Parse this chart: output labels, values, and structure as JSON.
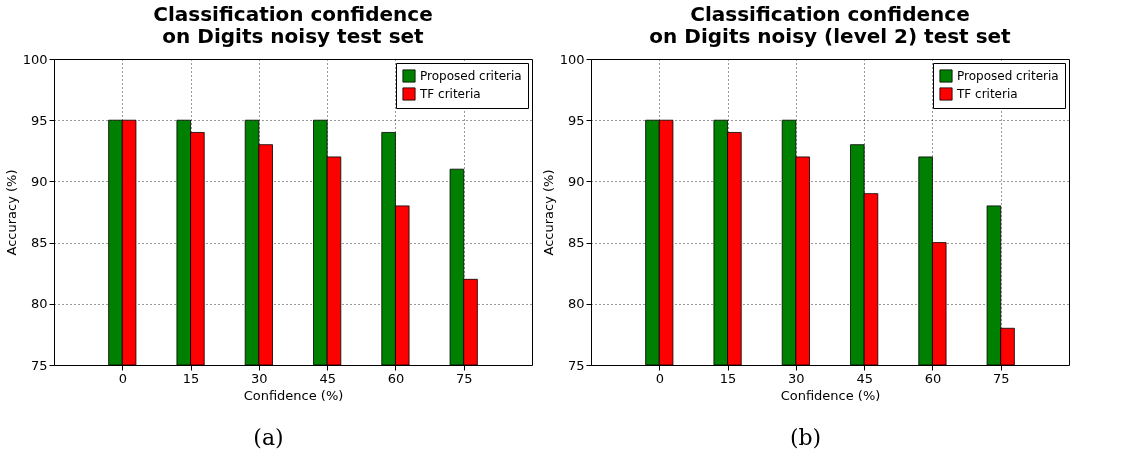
{
  "chart_data": [
    {
      "type": "bar",
      "title": "Classification confidence\non Digits noisy test set",
      "xlabel": "Confidence (%)",
      "ylabel": "Accuracy (%)",
      "x": [
        0,
        15,
        30,
        45,
        60,
        75
      ],
      "xlim": [
        -15,
        90
      ],
      "xticks": [
        0,
        15,
        30,
        45,
        60,
        75
      ],
      "ylim": [
        75,
        100
      ],
      "yticks": [
        75,
        80,
        85,
        90,
        95,
        100
      ],
      "grid": true,
      "legend": "top right",
      "annotations": [
        "(a)"
      ],
      "series": [
        {
          "name": "Proposed criteria",
          "color": "#008000",
          "values": [
            95,
            95,
            95,
            95,
            94,
            91
          ]
        },
        {
          "name": "TF criteria",
          "color": "#ff0000",
          "values": [
            95,
            94,
            93,
            92,
            88,
            82
          ]
        }
      ]
    },
    {
      "type": "bar",
      "title": "Classification confidence\non Digits noisy (level 2) test set",
      "xlabel": "Confidence (%)",
      "ylabel": "Accuracy (%)",
      "x": [
        0,
        15,
        30,
        45,
        60,
        75
      ],
      "xlim": [
        -15,
        90
      ],
      "xticks": [
        0,
        15,
        30,
        45,
        60,
        75
      ],
      "ylim": [
        75,
        100
      ],
      "yticks": [
        75,
        80,
        85,
        90,
        95,
        100
      ],
      "grid": true,
      "legend": "top right",
      "annotations": [
        "(b)"
      ],
      "series": [
        {
          "name": "Proposed criteria",
          "color": "#008000",
          "values": [
            95,
            95,
            95,
            93,
            92,
            88
          ]
        },
        {
          "name": "TF criteria",
          "color": "#ff0000",
          "values": [
            95,
            94,
            92,
            89,
            85,
            78
          ]
        }
      ]
    }
  ]
}
